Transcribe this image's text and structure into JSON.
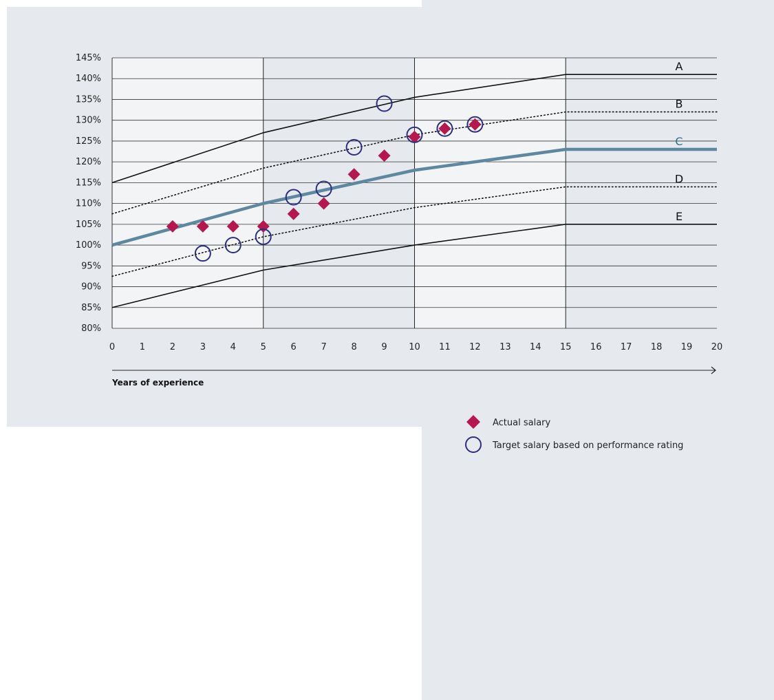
{
  "chart_data": {
    "type": "line",
    "xlabel": "Years of experience",
    "ylabel": "",
    "xlim": [
      0,
      20
    ],
    "ylim": [
      80,
      145
    ],
    "x_ticks": [
      "0",
      "1",
      "2",
      "3",
      "4",
      "5",
      "6",
      "7",
      "8",
      "9",
      "10",
      "11",
      "12",
      "13",
      "14",
      "15",
      "16",
      "17",
      "18",
      "19",
      "20"
    ],
    "y_ticks": [
      "80%",
      "85%",
      "90%",
      "95%",
      "100%",
      "105%",
      "110%",
      "115%",
      "120%",
      "125%",
      "130%",
      "135%",
      "140%",
      "145%"
    ],
    "y_tick_values": [
      80,
      85,
      90,
      95,
      100,
      105,
      110,
      115,
      120,
      125,
      130,
      135,
      140,
      145
    ],
    "shaded_x_ranges": [
      [
        5,
        10
      ],
      [
        15,
        20
      ]
    ],
    "vertical_lines_x": [
      5,
      10,
      15
    ],
    "grid": true,
    "legend_position": "bottom-right",
    "colors": {
      "band_line": "#111111",
      "median_line": "#5e87a0",
      "median_label": "#2f6f8f",
      "actual": "#b5174f",
      "target": "#2b2f7e",
      "shade": "#e6e9ee",
      "plot_bg": "#f3f4f6"
    },
    "series": [
      {
        "name": "A",
        "style": "solid",
        "x": [
          0,
          5,
          10,
          15,
          20
        ],
        "y": [
          115,
          127,
          135.5,
          141,
          141
        ]
      },
      {
        "name": "B",
        "style": "dotted",
        "x": [
          0,
          5,
          10,
          15,
          20
        ],
        "y": [
          107.5,
          118.5,
          126.5,
          132,
          132
        ]
      },
      {
        "name": "C",
        "style": "thick",
        "x": [
          0,
          5,
          10,
          15,
          20
        ],
        "y": [
          100,
          110,
          118,
          123,
          123
        ]
      },
      {
        "name": "D",
        "style": "dotted",
        "x": [
          0,
          5,
          10,
          15,
          20
        ],
        "y": [
          92.5,
          102,
          109,
          114,
          114
        ]
      },
      {
        "name": "E",
        "style": "solid",
        "x": [
          0,
          5,
          10,
          15,
          20
        ],
        "y": [
          85,
          94,
          100,
          105,
          105
        ]
      }
    ],
    "actual_salary": {
      "name": "Actual salary",
      "x": [
        2,
        3,
        4,
        5,
        6,
        7,
        8,
        9,
        10,
        11,
        12
      ],
      "y": [
        104.5,
        104.5,
        104.5,
        104.5,
        107.5,
        110,
        117,
        121.5,
        126,
        128,
        129
      ]
    },
    "target_salary": {
      "name": "Target salary based on performance rating",
      "x": [
        3,
        4,
        5,
        6,
        7,
        8,
        9,
        10,
        11,
        12
      ],
      "y": [
        98,
        100,
        102,
        111.5,
        113.5,
        123.5,
        134,
        126.5,
        128,
        129
      ]
    }
  }
}
